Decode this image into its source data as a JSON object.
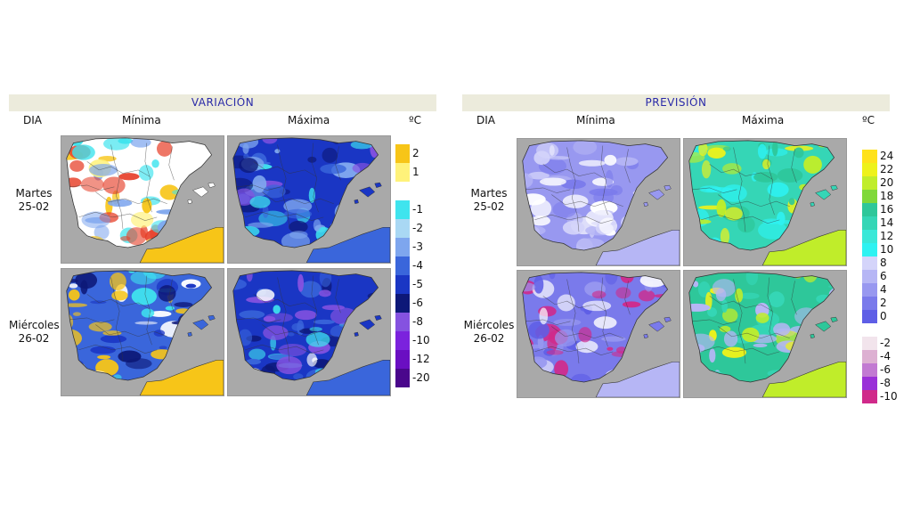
{
  "variacion": {
    "title": "VARIACIÓN",
    "dia": "DIA",
    "minima": "Mínima",
    "maxima": "Máxima",
    "unit": "ºC",
    "rows": [
      {
        "day": "Martes",
        "date": "25-02"
      },
      {
        "day": "Miércoles",
        "date": "26-02"
      }
    ],
    "legend": [
      {
        "label": "2",
        "color": "#f7c518"
      },
      {
        "label": "1",
        "color": "#fff27a"
      },
      {
        "label": "",
        "color": "#ffffff"
      },
      {
        "label": "-1",
        "color": "#3fe4ee"
      },
      {
        "label": "-2",
        "color": "#a9d8f4"
      },
      {
        "label": "-3",
        "color": "#7ea6ee"
      },
      {
        "label": "-4",
        "color": "#3a66db"
      },
      {
        "label": "-5",
        "color": "#1a36c4"
      },
      {
        "label": "-6",
        "color": "#0d1878"
      },
      {
        "label": "-8",
        "color": "#8552e0"
      },
      {
        "label": "-10",
        "color": "#7b22dd"
      },
      {
        "label": "-12",
        "color": "#6a0fc2"
      },
      {
        "label": "-20",
        "color": "#4a078c"
      }
    ]
  },
  "prevision": {
    "title": "PREVISIÓN",
    "dia": "DIA",
    "minima": "Mínima",
    "maxima": "Máxima",
    "unit": "ºC",
    "rows": [
      {
        "day": "Martes",
        "date": "25-02"
      },
      {
        "day": "Miércoles",
        "date": "26-02"
      }
    ],
    "legend": [
      {
        "label": "24",
        "color": "#ffe21a"
      },
      {
        "label": "22",
        "color": "#eef21a"
      },
      {
        "label": "20",
        "color": "#c0ed2a"
      },
      {
        "label": "18",
        "color": "#7fd83a"
      },
      {
        "label": "16",
        "color": "#2ec79a"
      },
      {
        "label": "14",
        "color": "#35d6b6"
      },
      {
        "label": "12",
        "color": "#3ae8d8"
      },
      {
        "label": "10",
        "color": "#2ef2f2"
      },
      {
        "label": "8",
        "color": "#d4d4fa"
      },
      {
        "label": "6",
        "color": "#b6b6f5"
      },
      {
        "label": "4",
        "color": "#9898f0"
      },
      {
        "label": "2",
        "color": "#7a7aeb"
      },
      {
        "label": "0",
        "color": "#5e5ee6"
      },
      {
        "label": "",
        "color": "#ffffff"
      },
      {
        "label": "-2",
        "color": "#f2e4ec"
      },
      {
        "label": "-4",
        "color": "#ddb0d2"
      },
      {
        "label": "-6",
        "color": "#c27ad2"
      },
      {
        "label": "-8",
        "color": "#9a30d8"
      },
      {
        "label": "-10",
        "color": "#d02a8a"
      }
    ]
  },
  "maps": {
    "var_min_1": {
      "base": "#ffffff",
      "colors": [
        "#f7c518",
        "#fff27a",
        "#3fe4ee",
        "#e7412b",
        "#7ea6ee"
      ],
      "sea_blob": "#f7c518"
    },
    "var_max_1": {
      "base": "#1a36c4",
      "colors": [
        "#8552e0",
        "#3fe4ee",
        "#0d1878",
        "#7ea6ee",
        "#3a66db"
      ],
      "sea_blob": "#3a66db"
    },
    "var_min_2": {
      "base": "#3a66db",
      "colors": [
        "#3fe4ee",
        "#1a36c4",
        "#ffffff",
        "#0d1878",
        "#f7c518"
      ],
      "sea_blob": "#f7c518"
    },
    "var_max_2": {
      "base": "#1a36c4",
      "colors": [
        "#0d1878",
        "#3fe4ee",
        "#8552e0",
        "#ffffff",
        "#3a66db"
      ],
      "sea_blob": "#3a66db"
    },
    "prev_min_1": {
      "base": "#9898f0",
      "colors": [
        "#b6b6f5",
        "#7a7aeb",
        "#d4d4fa",
        "#ffffff"
      ],
      "sea_blob": "#b6b6f5"
    },
    "prev_max_1": {
      "base": "#35d6b6",
      "colors": [
        "#2ec79a",
        "#c0ed2a",
        "#eef21a",
        "#2ef2f2"
      ],
      "sea_blob": "#c0ed2a"
    },
    "prev_min_2": {
      "base": "#7a7aeb",
      "colors": [
        "#9898f0",
        "#ffffff",
        "#5e5ee6",
        "#d02a8a"
      ],
      "sea_blob": "#b6b6f5"
    },
    "prev_max_2": {
      "base": "#2ec79a",
      "colors": [
        "#35d6b6",
        "#b6b6f5",
        "#c0ed2a",
        "#eef21a"
      ],
      "sea_blob": "#c0ed2a"
    }
  }
}
